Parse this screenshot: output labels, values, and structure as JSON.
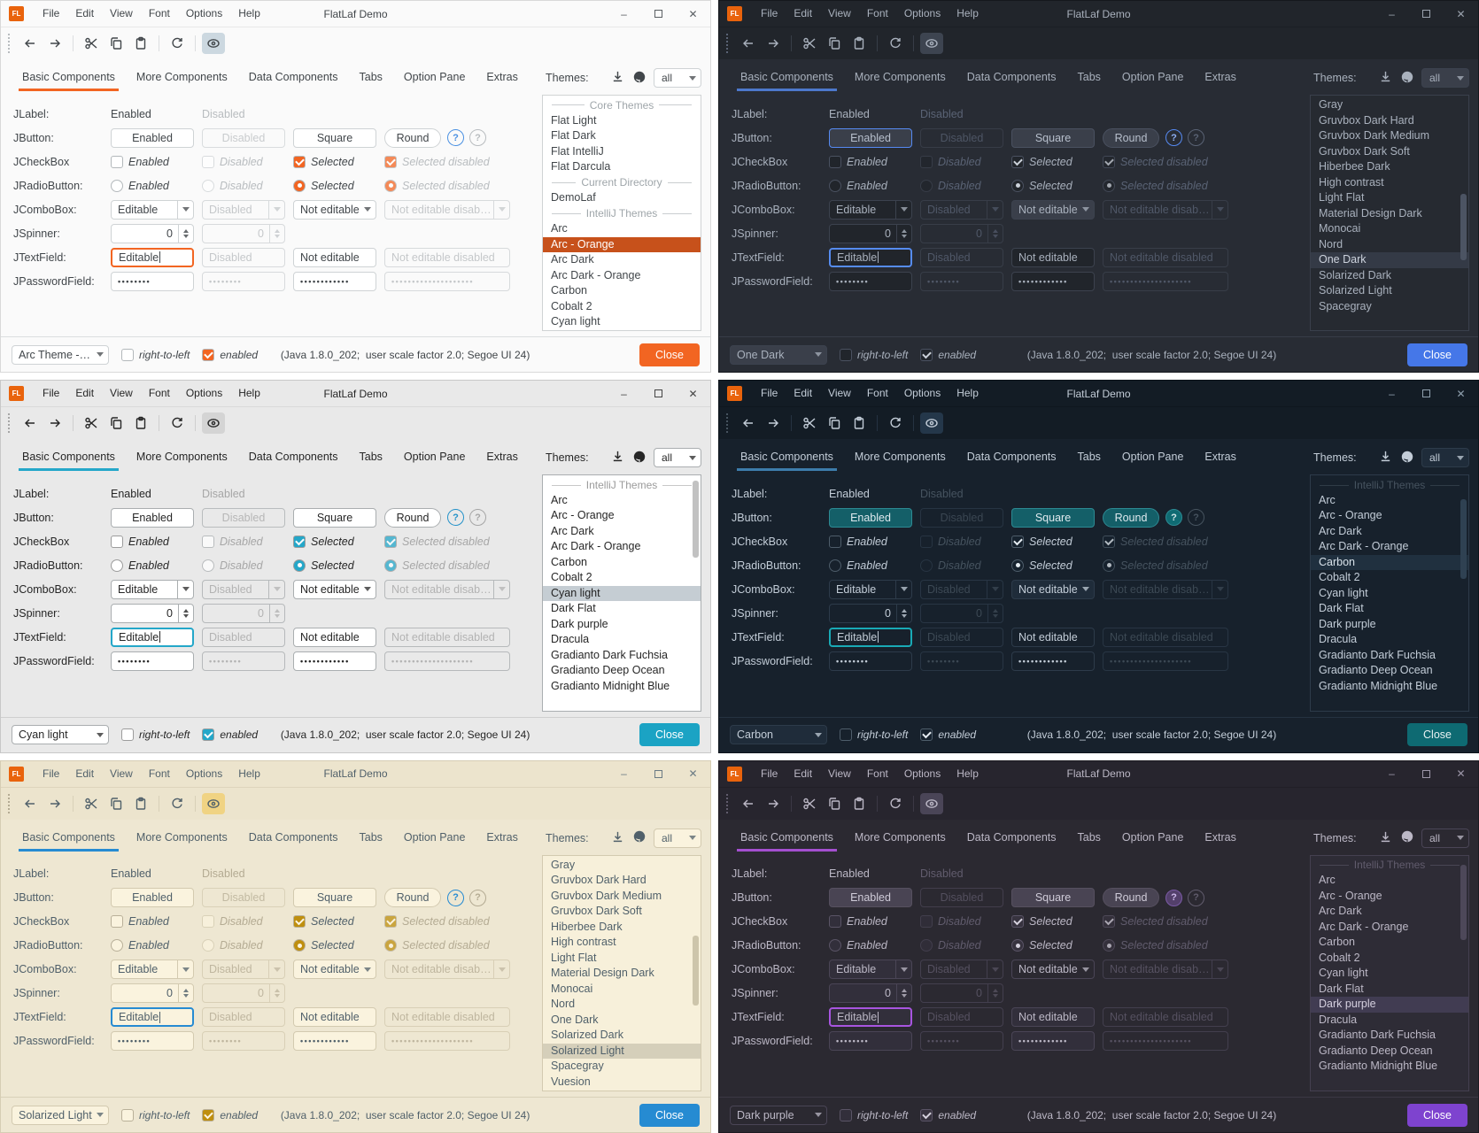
{
  "common": {
    "titlebar": {
      "logo": "FL",
      "title": "FlatLaf Demo",
      "minimize": "–",
      "close": "✕"
    },
    "menu": [
      "File",
      "Edit",
      "View",
      "Font",
      "Options",
      "Help"
    ],
    "tabs": [
      "Basic Components",
      "More Components",
      "Data Components",
      "Tabs",
      "Option Pane",
      "Extras"
    ],
    "active_tab": "Basic Components",
    "themes_header": {
      "label": "Themes:",
      "filter_value": "all"
    },
    "rows": {
      "jlabel": {
        "label": "JLabel:",
        "c1": "Enabled",
        "c2": "Disabled"
      },
      "jbutton": {
        "label": "JButton:",
        "c1": "Enabled",
        "c2": "Disabled",
        "c3": "Square",
        "c4": "Round",
        "help": "?"
      },
      "jcheckbox": {
        "label": "JCheckBox",
        "c1": "Enabled",
        "c2": "Disabled",
        "c3": "Selected",
        "c4": "Selected disabled"
      },
      "jradiobutton": {
        "label": "JRadioButton:",
        "c1": "Enabled",
        "c2": "Disabled",
        "c3": "Selected",
        "c4": "Selected disabled"
      },
      "jcombobox": {
        "label": "JComboBox:",
        "c1": "Editable",
        "c2": "Disabled",
        "c3": "Not editable",
        "c4": "Not editable disabled"
      },
      "jspinner": {
        "label": "JSpinner:",
        "c1": "0",
        "c2": "0"
      },
      "jtextfield": {
        "label": "JTextField:",
        "c1": "Editable",
        "c2": "Disabled",
        "c3": "Not editable",
        "c4": "Not editable disabled"
      },
      "jpasswordfield": {
        "label": "JPasswordField:",
        "c1": "••••••••",
        "c2": "••••••••",
        "c3": "••••••••••••",
        "c4": "••••••••••••••••••••"
      }
    },
    "footer": {
      "rtl_label": "right-to-left",
      "enabled_label": "enabled",
      "status": "(Java 1.8.0_202;  user scale factor 2.0; Segoe UI 24)",
      "close_label": "Close"
    }
  },
  "panels": [
    {
      "theme": "arc",
      "theme_name": "Arc - Orange",
      "accent": "#f26522",
      "focus": "#f26522",
      "selection_bg": "#c7511b",
      "close_bg": "#f26522",
      "footer_theme": "Arc Theme - O...",
      "selected_theme": "Arc - Orange",
      "scrollbar": null,
      "themes_list": [
        {
          "sep": "Core Themes"
        },
        {
          "item": "Flat Light"
        },
        {
          "item": "Flat Dark"
        },
        {
          "item": "Flat IntelliJ"
        },
        {
          "item": "Flat Darcula"
        },
        {
          "sep": "Current Directory"
        },
        {
          "item": "DemoLaf"
        },
        {
          "sep": "IntelliJ Themes"
        },
        {
          "item": "Arc"
        },
        {
          "item": "Arc - Orange"
        },
        {
          "item": "Arc Dark"
        },
        {
          "item": "Arc Dark - Orange"
        },
        {
          "item": "Carbon"
        },
        {
          "item": "Cobalt 2"
        },
        {
          "item": "Cyan light"
        }
      ]
    },
    {
      "theme": "onedark",
      "theme_name": "One Dark",
      "accent": "#4d78cc",
      "focus": "#568cf0",
      "selection_bg": "#343a46",
      "close_bg": "#4577e8",
      "footer_theme": "One Dark",
      "selected_theme": "One Dark",
      "scrollbar": {
        "top_pct": 42,
        "height_pct": 28
      },
      "themes_list": [
        {
          "item": "Gray"
        },
        {
          "item": "Gruvbox Dark Hard"
        },
        {
          "item": "Gruvbox Dark Medium"
        },
        {
          "item": "Gruvbox Dark Soft"
        },
        {
          "item": "Hiberbee Dark"
        },
        {
          "item": "High contrast"
        },
        {
          "item": "Light Flat"
        },
        {
          "item": "Material Design Dark"
        },
        {
          "item": "Monocai"
        },
        {
          "item": "Nord"
        },
        {
          "item": "One Dark"
        },
        {
          "item": "Solarized Dark"
        },
        {
          "item": "Solarized Light"
        },
        {
          "item": "Spacegray"
        }
      ]
    },
    {
      "theme": "cyan",
      "theme_name": "Cyan light",
      "accent": "#24a7c9",
      "focus": "#24a7c9",
      "selection_bg": "#c5cdd3",
      "close_bg": "#1ba3c4",
      "footer_theme": "Cyan light",
      "selected_theme": "Cyan light",
      "scrollbar": {
        "top_pct": 2,
        "height_pct": 33
      },
      "themes_list": [
        {
          "sep": "IntelliJ Themes"
        },
        {
          "item": "Arc"
        },
        {
          "item": "Arc - Orange"
        },
        {
          "item": "Arc Dark"
        },
        {
          "item": "Arc Dark - Orange"
        },
        {
          "item": "Carbon"
        },
        {
          "item": "Cobalt 2"
        },
        {
          "item": "Cyan light"
        },
        {
          "item": "Dark Flat"
        },
        {
          "item": "Dark purple"
        },
        {
          "item": "Dracula"
        },
        {
          "item": "Gradianto Dark Fuchsia"
        },
        {
          "item": "Gradianto Deep Ocean"
        },
        {
          "item": "Gradianto Midnight Blue"
        }
      ]
    },
    {
      "theme": "carbon",
      "theme_name": "Carbon",
      "accent": "#3d7dab",
      "focus": "#19aab6",
      "selection_bg": "#20303f",
      "close_bg": "#0e6a72",
      "footer_theme": "Carbon",
      "selected_theme": "Carbon",
      "scrollbar": {
        "top_pct": 10,
        "height_pct": 34
      },
      "themes_list": [
        {
          "sep": "IntelliJ Themes"
        },
        {
          "item": "Arc"
        },
        {
          "item": "Arc - Orange"
        },
        {
          "item": "Arc Dark"
        },
        {
          "item": "Arc Dark - Orange"
        },
        {
          "item": "Carbon"
        },
        {
          "item": "Cobalt 2"
        },
        {
          "item": "Cyan light"
        },
        {
          "item": "Dark Flat"
        },
        {
          "item": "Dark purple"
        },
        {
          "item": "Dracula"
        },
        {
          "item": "Gradianto Dark Fuchsia"
        },
        {
          "item": "Gradianto Deep Ocean"
        },
        {
          "item": "Gradianto Midnight Blue"
        }
      ]
    },
    {
      "theme": "solar",
      "theme_name": "Solarized Light",
      "accent": "#268bd2",
      "focus": "#268bd2",
      "selection_bg": "#d5cfba",
      "close_bg": "#268bd2",
      "footer_theme": "Solarized Light",
      "selected_theme": "Solarized Light",
      "scrollbar": {
        "top_pct": 34,
        "height_pct": 30
      },
      "themes_list": [
        {
          "item": "Gray"
        },
        {
          "item": "Gruvbox Dark Hard"
        },
        {
          "item": "Gruvbox Dark Medium"
        },
        {
          "item": "Gruvbox Dark Soft"
        },
        {
          "item": "Hiberbee Dark"
        },
        {
          "item": "High contrast"
        },
        {
          "item": "Light Flat"
        },
        {
          "item": "Material Design Dark"
        },
        {
          "item": "Monocai"
        },
        {
          "item": "Nord"
        },
        {
          "item": "One Dark"
        },
        {
          "item": "Solarized Dark"
        },
        {
          "item": "Solarized Light"
        },
        {
          "item": "Spacegray"
        },
        {
          "item": "Vuesion"
        }
      ]
    },
    {
      "theme": "purple",
      "theme_name": "Dark purple",
      "accent": "#a44fd0",
      "focus": "#a855e0",
      "selection_bg": "#413c52",
      "close_bg": "#7e43cf",
      "footer_theme": "Dark purple",
      "selected_theme": "Dark purple",
      "scrollbar": {
        "top_pct": 4,
        "height_pct": 32
      },
      "themes_list": [
        {
          "sep": "IntelliJ Themes"
        },
        {
          "item": "Arc"
        },
        {
          "item": "Arc - Orange"
        },
        {
          "item": "Arc Dark"
        },
        {
          "item": "Arc Dark - Orange"
        },
        {
          "item": "Carbon"
        },
        {
          "item": "Cobalt 2"
        },
        {
          "item": "Cyan light"
        },
        {
          "item": "Dark Flat"
        },
        {
          "item": "Dark purple"
        },
        {
          "item": "Dracula"
        },
        {
          "item": "Gradianto Dark Fuchsia"
        },
        {
          "item": "Gradianto Deep Ocean"
        },
        {
          "item": "Gradianto Midnight Blue"
        }
      ]
    }
  ]
}
